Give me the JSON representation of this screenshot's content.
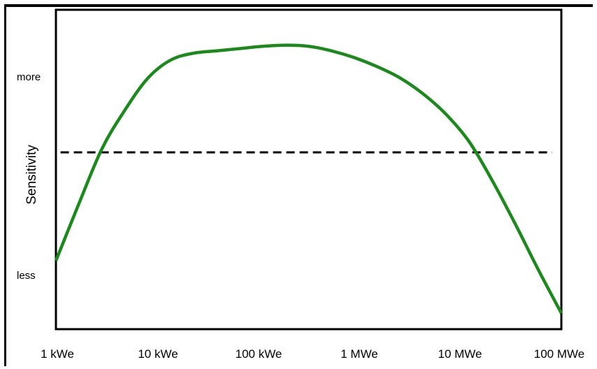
{
  "chart_data": {
    "type": "line",
    "title": "",
    "xlabel": "",
    "ylabel": "Sensitivity",
    "x_ticks": [
      "1 kWe",
      "10 kWe",
      "100 kWe",
      "1 MWe",
      "10 MWe",
      "100 MWe"
    ],
    "y_ticks": [
      "more",
      "less"
    ],
    "x_scale": "log",
    "grid": false,
    "series": [
      {
        "color": "#1a8a1a",
        "points": [
          [
            0.0,
            0.3
          ],
          [
            0.25,
            0.55
          ],
          [
            0.5,
            0.79
          ],
          [
            0.75,
            0.96
          ],
          [
            1.0,
            1.1
          ],
          [
            1.25,
            1.18
          ],
          [
            1.5,
            1.21
          ],
          [
            1.75,
            1.22
          ],
          [
            2.0,
            1.23
          ],
          [
            2.25,
            1.24
          ],
          [
            2.5,
            1.245
          ],
          [
            2.75,
            1.24
          ],
          [
            3.0,
            1.22
          ],
          [
            3.25,
            1.19
          ],
          [
            3.5,
            1.15
          ],
          [
            3.75,
            1.1
          ],
          [
            4.0,
            1.03
          ],
          [
            4.25,
            0.94
          ],
          [
            4.5,
            0.82
          ],
          [
            4.75,
            0.65
          ],
          [
            5.0,
            0.46
          ],
          [
            5.25,
            0.26
          ],
          [
            5.5,
            0.07
          ]
        ]
      }
    ],
    "reference_line": {
      "style": "dashed",
      "color": "#000000",
      "y": 0.775
    },
    "xlim": [
      0,
      5.5
    ],
    "ylim": [
      0,
      1.4
    ]
  }
}
